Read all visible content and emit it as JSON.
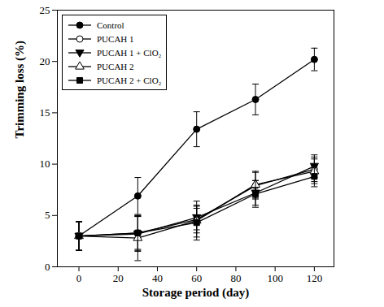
{
  "chart_data": {
    "type": "line",
    "xlabel": "Storage period (day)",
    "ylabel": "Trimming loss (%)",
    "x": [
      0,
      30,
      60,
      90,
      120
    ],
    "xlim": [
      -11,
      130
    ],
    "xticks": [
      0,
      20,
      40,
      60,
      80,
      100,
      120
    ],
    "ylim": [
      0,
      25
    ],
    "yticks": [
      0,
      5,
      10,
      15,
      20,
      25
    ],
    "legend": "upper left",
    "grid": false,
    "series": [
      {
        "name": "Control",
        "color": "#000000",
        "marker": "circle",
        "line_style": "solid",
        "values": [
          3.0,
          6.9,
          13.4,
          16.3,
          20.2
        ],
        "errors": [
          1.4,
          1.8,
          1.7,
          1.5,
          1.1
        ]
      },
      {
        "name": "PUCAH 1",
        "color": "#000000",
        "marker": "open-circle",
        "line_style": "solid",
        "values": [
          3.0,
          3.3,
          4.6,
          7.9,
          9.5
        ],
        "errors": [
          1.4,
          1.6,
          1.3,
          1.3,
          1.2
        ]
      },
      {
        "name": "PUCAH 1 + ClO₂",
        "color": "#000000",
        "marker": "triangle-down",
        "line_style": "solid",
        "values": [
          3.0,
          3.2,
          4.8,
          7.2,
          9.8
        ],
        "errors": [
          1.4,
          1.7,
          1.2,
          1.2,
          1.1
        ]
      },
      {
        "name": "PUCAH 2",
        "color": "#000000",
        "marker": "open-triangle",
        "line_style": "solid",
        "values": [
          3.0,
          2.8,
          4.5,
          8.0,
          9.3
        ],
        "errors": [
          1.4,
          2.2,
          1.9,
          1.3,
          1.2
        ]
      },
      {
        "name": "PUCAH 2 + ClO₂",
        "color": "#000000",
        "marker": "square",
        "line_style": "solid",
        "values": [
          3.0,
          3.3,
          4.3,
          7.1,
          8.8
        ],
        "errors": [
          1.4,
          1.7,
          1.4,
          1.3,
          1.0
        ]
      }
    ]
  }
}
